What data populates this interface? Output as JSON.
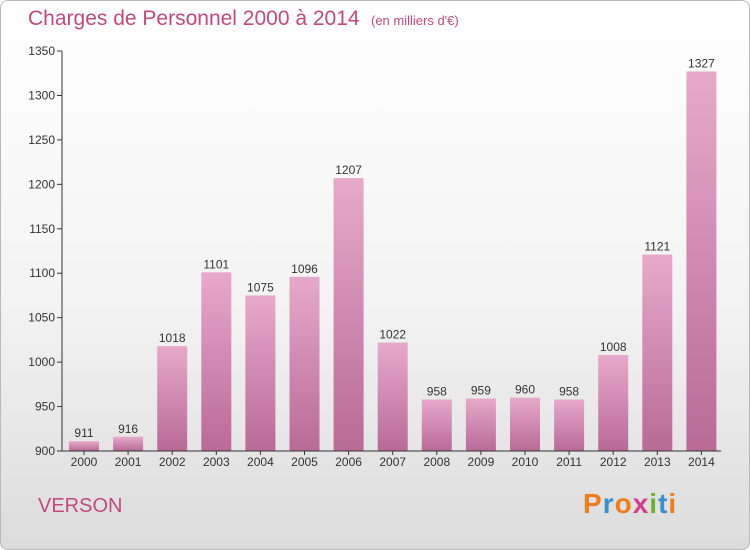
{
  "header": {
    "title": "Charges de Personnel 2000 à 2014",
    "subtitle": "(en milliers d'€)"
  },
  "footer": {
    "commune": "VERSON",
    "logo_letters": [
      "P",
      "r",
      "o",
      "x",
      "i",
      "t",
      "i"
    ],
    "logo_colors": [
      "#f07c1a",
      "#3a8fd1",
      "#f07c1a",
      "#d63b8c",
      "#6ab42d",
      "#3a8fd1",
      "#f07c1a"
    ]
  },
  "colors": {
    "accent": "#c2497f",
    "bar_top": "#e7a9cb",
    "bar_bottom": "#b96a97"
  },
  "chart_data": {
    "type": "bar",
    "title": "Charges de Personnel 2000 à 2014",
    "xlabel": "",
    "ylabel": "",
    "categories": [
      "2000",
      "2001",
      "2002",
      "2003",
      "2004",
      "2005",
      "2006",
      "2007",
      "2008",
      "2009",
      "2010",
      "2011",
      "2012",
      "2013",
      "2014"
    ],
    "values": [
      911,
      916,
      1018,
      1101,
      1075,
      1096,
      1207,
      1022,
      958,
      959,
      960,
      958,
      1008,
      1121,
      1327
    ],
    "ylim": [
      900,
      1350
    ],
    "yticks": [
      900,
      950,
      1000,
      1050,
      1100,
      1150,
      1200,
      1250,
      1300,
      1350
    ],
    "grid": false
  }
}
